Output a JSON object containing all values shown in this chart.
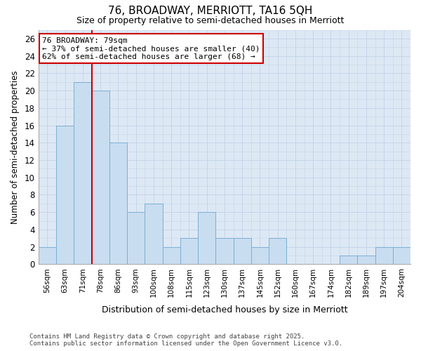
{
  "title1": "76, BROADWAY, MERRIOTT, TA16 5QH",
  "title2": "Size of property relative to semi-detached houses in Merriott",
  "xlabel": "Distribution of semi-detached houses by size in Merriott",
  "ylabel": "Number of semi-detached properties",
  "categories": [
    "56sqm",
    "63sqm",
    "71sqm",
    "78sqm",
    "86sqm",
    "93sqm",
    "100sqm",
    "108sqm",
    "115sqm",
    "123sqm",
    "130sqm",
    "137sqm",
    "145sqm",
    "152sqm",
    "160sqm",
    "167sqm",
    "174sqm",
    "182sqm",
    "189sqm",
    "197sqm",
    "204sqm"
  ],
  "values": [
    2,
    16,
    21,
    20,
    14,
    6,
    7,
    2,
    3,
    6,
    3,
    3,
    2,
    3,
    0,
    0,
    0,
    1,
    1,
    2,
    2
  ],
  "bar_color": "#c9ddf0",
  "bar_edge_color": "#7bafd4",
  "highlight_index": 3,
  "red_line_label": "76 BROADWAY: 79sqm",
  "annotation_line1": "← 37% of semi-detached houses are smaller (40)",
  "annotation_line2": "62% of semi-detached houses are larger (68) →",
  "annotation_box_color": "#ffffff",
  "annotation_box_edge": "#cc0000",
  "vline_color": "#cc0000",
  "ylim": [
    0,
    27
  ],
  "yticks": [
    0,
    2,
    4,
    6,
    8,
    10,
    12,
    14,
    16,
    18,
    20,
    22,
    24,
    26
  ],
  "grid_color": "#c5d5e8",
  "bg_color": "#dde8f5",
  "fig_color": "#ffffff",
  "footer1": "Contains HM Land Registry data © Crown copyright and database right 2025.",
  "footer2": "Contains public sector information licensed under the Open Government Licence v3.0."
}
